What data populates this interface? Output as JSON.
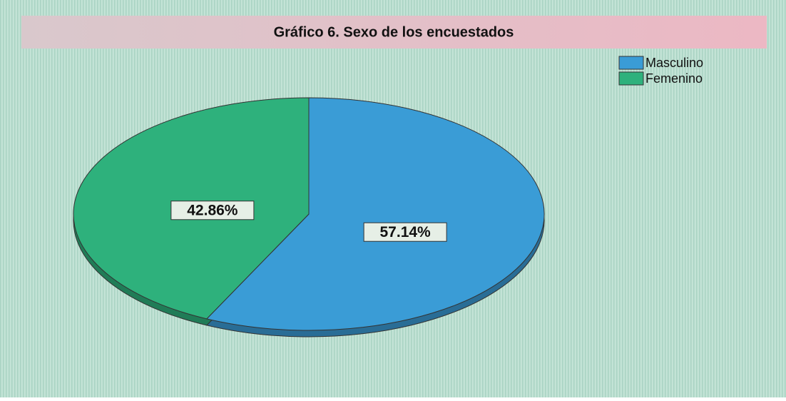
{
  "chart_data": {
    "type": "pie",
    "title": "Gráfico 6. Sexo de los encuestados",
    "categories": [
      "Masculino",
      "Femenino"
    ],
    "series": [
      {
        "values": [
          57.14,
          42.86
        ],
        "value_labels": [
          "57.14%",
          "42.86%"
        ],
        "colors": [
          "#3a9cd6",
          "#2eb17c"
        ]
      }
    ],
    "legend": "top-right"
  }
}
